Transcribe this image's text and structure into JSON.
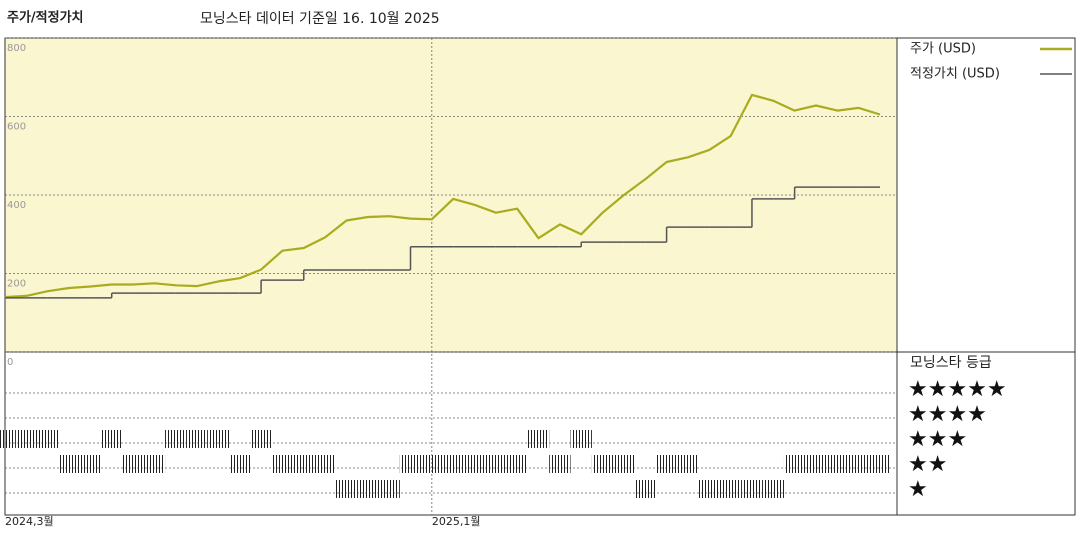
{
  "chart_data": {
    "type": "line",
    "title": "주가/적정가치",
    "subtitle": "모닝스타 데이터 기준일 16. 10월 2025",
    "categories": [
      "2024,3월",
      null,
      null,
      null,
      null,
      null,
      null,
      null,
      null,
      null,
      null,
      null,
      null,
      null,
      null,
      null,
      null,
      null,
      null,
      null,
      "2025,1월",
      null,
      null,
      null,
      null,
      null,
      null,
      null,
      null,
      null,
      null,
      null,
      null,
      null,
      null,
      null,
      null,
      null,
      null,
      null,
      null,
      null
    ],
    "series": [
      {
        "name": "주가 (USD)",
        "color": "#a9ac1f",
        "values": [
          140,
          143,
          155,
          163,
          167,
          172,
          172,
          175,
          170,
          168,
          180,
          188,
          210,
          258,
          265,
          292,
          335,
          344,
          346,
          340,
          338,
          390,
          375,
          355,
          365,
          290,
          325,
          300,
          355,
          400,
          440,
          484,
          496,
          515,
          550,
          655,
          640,
          615,
          628,
          615,
          622,
          605
        ]
      },
      {
        "name": "적정가치 (USD)",
        "color": "#555555",
        "step": true,
        "values": [
          138,
          138,
          138,
          138,
          138,
          150,
          150,
          150,
          150,
          150,
          150,
          150,
          183,
          183,
          209,
          209,
          209,
          209,
          209,
          268,
          268,
          268,
          268,
          268,
          268,
          268,
          268,
          280,
          280,
          280,
          280,
          318,
          318,
          318,
          318,
          390,
          390,
          420,
          420,
          420,
          420,
          420
        ]
      }
    ],
    "ylim": [
      0,
      800
    ],
    "yticks": [
      0,
      200,
      400,
      600,
      800
    ],
    "grid": true,
    "rating": {
      "title": "모닝스타 등급",
      "ticks": [
        {
          "value": 5,
          "label": "★★★★★"
        },
        {
          "value": 4,
          "label": "★★★★"
        },
        {
          "value": 3,
          "label": "★★★"
        },
        {
          "value": 2,
          "label": "★★"
        },
        {
          "value": 1,
          "label": "★"
        }
      ],
      "values": [
        3,
        3,
        3,
        2,
        2,
        3,
        2,
        2,
        3,
        3,
        3,
        2,
        3,
        2,
        2,
        2,
        1,
        1,
        1,
        2,
        2,
        2,
        2,
        2,
        2,
        3,
        2,
        3,
        2,
        2,
        1,
        2,
        2,
        1,
        1,
        1,
        1,
        2,
        2,
        2,
        2,
        2
      ]
    }
  }
}
